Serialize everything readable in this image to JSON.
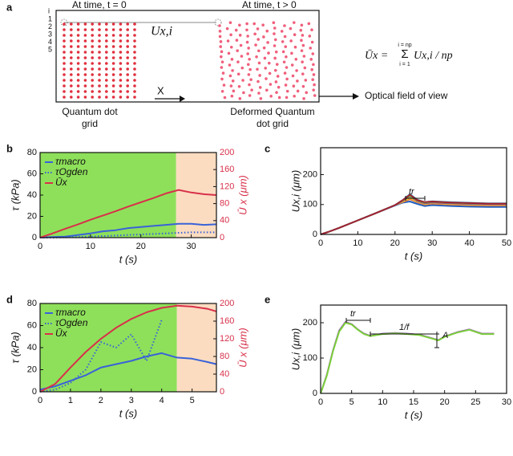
{
  "panel_labels": [
    "a",
    "b",
    "c",
    "d",
    "e"
  ],
  "diagram": {
    "time0": "At time, t = 0",
    "time1": "At time, t > 0",
    "displacement": "Ux,i",
    "row_index": "i",
    "rows": [
      "1",
      "2",
      "3",
      "4",
      "5"
    ],
    "x_axis": "X",
    "grid_label": [
      "Quantum dot",
      "grid"
    ],
    "deformed_label": [
      "Deformed Quantum",
      "dot grid"
    ],
    "fov": "Optical field of view",
    "formula": {
      "lhs": "Ūx =",
      "upper": "i = np",
      "sigma": "Σ",
      "lower": "i = 1",
      "term": "Ux,i / np"
    }
  },
  "chart_data": [
    {
      "type": "line",
      "xlabel": "t (s)",
      "ylabel": "τ (kPa)",
      "y2label": "Ū x (μm)",
      "xlim": [
        0,
        35
      ],
      "xticks": [
        0,
        10,
        20,
        30
      ],
      "ylim": [
        0,
        80
      ],
      "yticks": [
        0,
        20,
        40,
        60,
        80
      ],
      "y2lim": [
        0,
        200
      ],
      "y2ticks": [
        0,
        40,
        80,
        120,
        160,
        200
      ],
      "shaded": [
        {
          "x": [
            0,
            27
          ],
          "color": "#8ee05a"
        },
        {
          "x": [
            27,
            35
          ],
          "color": "#fbdcc0"
        }
      ],
      "legend": "upper left",
      "x": [
        0,
        2.5,
        5,
        7.5,
        10,
        12.5,
        15,
        17.5,
        20,
        22.5,
        25,
        27.5,
        30,
        32.5,
        35
      ],
      "series": [
        {
          "name": "τmacro",
          "color": "#3a62d8",
          "style": "solid",
          "values": [
            0,
            0.5,
            1,
            2.5,
            4,
            6,
            7,
            9,
            10,
            11,
            12,
            13,
            13,
            12,
            12.5
          ]
        },
        {
          "name": "τOgden",
          "color": "#3a62d8",
          "style": "dotted",
          "values": [
            0,
            0,
            0.3,
            0.6,
            1,
            1.5,
            2,
            2.5,
            3,
            3.5,
            4,
            4.5,
            5,
            5,
            5
          ]
        },
        {
          "name": "Ūx",
          "color": "#d8304a",
          "style": "solid",
          "axis": "y2",
          "values": [
            0,
            10,
            21,
            31,
            42,
            52,
            62,
            73,
            83,
            93,
            104,
            112,
            106,
            102,
            100
          ]
        }
      ]
    },
    {
      "type": "line",
      "xlabel": "t (s)",
      "ylabel": "Ux,i (μm)",
      "xlim": [
        0,
        50
      ],
      "xticks": [
        0,
        10,
        20,
        30,
        40,
        50
      ],
      "ylim": [
        0,
        290
      ],
      "yticks": [
        0,
        100,
        200
      ],
      "annotations": [
        "tr"
      ],
      "x": [
        0,
        2,
        5,
        10,
        15,
        20,
        22,
        24,
        26,
        28,
        30,
        35,
        40,
        45,
        50
      ],
      "series": [
        {
          "color": "#1f5fbf",
          "style": "solid",
          "values": [
            0,
            8,
            22,
            47,
            72,
            97,
            106,
            110,
            102,
            95,
            98,
            95,
            93,
            92,
            92
          ]
        },
        {
          "color": "#e8743b",
          "style": "solid",
          "values": [
            0,
            8,
            22,
            47,
            72,
            98,
            108,
            118,
            108,
            100,
            103,
            100,
            98,
            97,
            97
          ]
        },
        {
          "color": "#f2c12e",
          "style": "solid",
          "values": [
            0,
            8,
            22,
            47,
            72,
            98,
            110,
            122,
            110,
            102,
            105,
            102,
            100,
            99,
            99
          ]
        },
        {
          "color": "#7e3f98",
          "style": "solid",
          "values": [
            0,
            8,
            22,
            47,
            72,
            98,
            112,
            128,
            112,
            104,
            107,
            104,
            102,
            101,
            101
          ]
        },
        {
          "color": "#6cbf3a",
          "style": "solid",
          "values": [
            0,
            8,
            22,
            47,
            72,
            98,
            113,
            130,
            114,
            106,
            109,
            106,
            104,
            103,
            103
          ]
        },
        {
          "color": "#3fb8d8",
          "style": "solid",
          "values": [
            0,
            8,
            22,
            47,
            72,
            98,
            114,
            135,
            116,
            108,
            111,
            108,
            106,
            104,
            104
          ]
        },
        {
          "color": "#a02030",
          "style": "solid",
          "values": [
            0,
            8,
            22,
            47,
            72,
            98,
            114,
            133,
            115,
            108,
            110,
            107,
            105,
            103,
            103
          ]
        }
      ]
    },
    {
      "type": "line",
      "xlabel": "t (s)",
      "ylabel": "τ (kPa)",
      "y2label": "Ū x (μm)",
      "xlim": [
        0,
        5.8
      ],
      "xticks": [
        0,
        1,
        2,
        3,
        4,
        5
      ],
      "ylim": [
        0,
        80
      ],
      "yticks": [
        0,
        20,
        40,
        60,
        80
      ],
      "y2lim": [
        0,
        200
      ],
      "y2ticks": [
        0,
        40,
        80,
        120,
        160,
        200
      ],
      "shaded": [
        {
          "x": [
            0,
            4.5
          ],
          "color": "#8ee05a"
        },
        {
          "x": [
            4.5,
            5.8
          ],
          "color": "#fbdcc0"
        }
      ],
      "legend": "upper left",
      "x": [
        0,
        0.5,
        1,
        1.5,
        2,
        2.5,
        3,
        3.5,
        4,
        4.5,
        5,
        5.5,
        5.8
      ],
      "series": [
        {
          "name": "τmacro",
          "color": "#3a62d8",
          "style": "solid",
          "values": [
            2,
            5,
            10,
            15,
            22,
            25,
            28,
            32,
            35,
            31,
            30,
            27,
            25
          ]
        },
        {
          "name": "τOgden",
          "color": "#3a62d8",
          "style": "dotted",
          "values": [
            0,
            2,
            8,
            20,
            45,
            40,
            52,
            28,
            65,
            null,
            null,
            null,
            null
          ]
        },
        {
          "name": "Ūx",
          "color": "#d8304a",
          "style": "solid",
          "axis": "y2",
          "values": [
            0,
            18,
            55,
            90,
            120,
            145,
            165,
            180,
            190,
            195,
            193,
            188,
            182
          ]
        }
      ]
    },
    {
      "type": "line",
      "xlabel": "t (s)",
      "ylabel": "Ux,i (μm)",
      "xlim": [
        0,
        30
      ],
      "xticks": [
        0,
        5,
        10,
        15,
        20,
        25,
        30
      ],
      "ylim": [
        0,
        250
      ],
      "yticks": [
        0,
        100,
        200
      ],
      "annotations": [
        "tr",
        "1/f",
        "A"
      ],
      "x": [
        0,
        1,
        2,
        3,
        4,
        5,
        6,
        7,
        8,
        10,
        12,
        14,
        16,
        18,
        19,
        20,
        22,
        24,
        26,
        28
      ],
      "series": [
        {
          "color": "#8a4fb0",
          "style": "solid",
          "values": [
            0,
            52,
            122,
            178,
            202,
            196,
            181,
            169,
            163,
            169,
            171,
            169,
            166,
            156,
            151,
            161,
            173,
            181,
            169,
            169
          ]
        },
        {
          "color": "#7ccf3a",
          "style": "solid",
          "values": [
            0,
            50,
            120,
            175,
            200,
            195,
            180,
            168,
            162,
            168,
            170,
            168,
            165,
            155,
            150,
            160,
            172,
            180,
            168,
            168
          ]
        }
      ]
    }
  ]
}
